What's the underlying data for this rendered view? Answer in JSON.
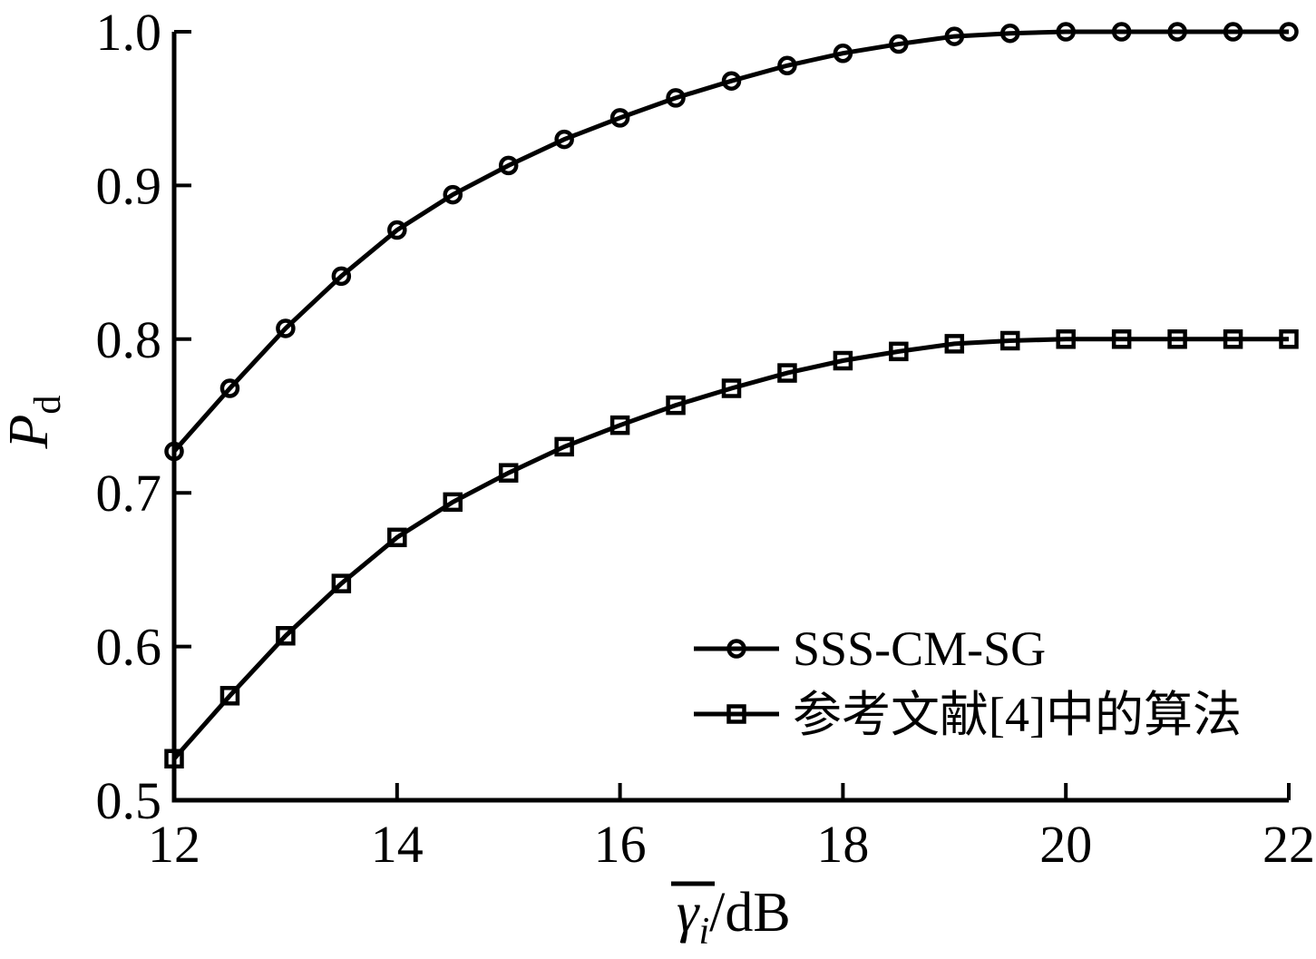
{
  "figure": {
    "background_color": "#ffffff",
    "ink_color": "#000000"
  },
  "chart_data": {
    "type": "line",
    "x": [
      12,
      12.5,
      13,
      13.5,
      14,
      14.5,
      15,
      15.5,
      16,
      16.5,
      17,
      17.5,
      18,
      18.5,
      19,
      19.5,
      20,
      20.5,
      21,
      21.5,
      22
    ],
    "series": [
      {
        "name": "SSS-CM-SG",
        "marker": "circle",
        "values": [
          0.727,
          0.768,
          0.807,
          0.841,
          0.871,
          0.894,
          0.913,
          0.93,
          0.944,
          0.957,
          0.968,
          0.978,
          0.986,
          0.992,
          0.997,
          0.999,
          1.0,
          1.0,
          1.0,
          1.0,
          1.0
        ]
      },
      {
        "name": "参考文献[4]中的算法",
        "marker": "square",
        "values": [
          0.527,
          0.568,
          0.607,
          0.641,
          0.671,
          0.694,
          0.713,
          0.73,
          0.744,
          0.757,
          0.768,
          0.778,
          0.786,
          0.792,
          0.797,
          0.799,
          0.8,
          0.8,
          0.8,
          0.8,
          0.8
        ]
      }
    ],
    "xlabel": {
      "symbol": "γ",
      "overbar": true,
      "subscript": "i",
      "unit": "/dB"
    },
    "ylabel": {
      "symbol": "P",
      "subscript": "d"
    },
    "xlim": [
      12,
      22
    ],
    "ylim": [
      0.5,
      1.0
    ],
    "xticks": {
      "values": [
        12,
        14,
        16,
        18,
        20,
        22
      ],
      "labels": [
        "12",
        "14",
        "16",
        "18",
        "20",
        "22"
      ]
    },
    "yticks": {
      "values": [
        0.5,
        0.6,
        0.7,
        0.8,
        0.9,
        1.0
      ],
      "labels": [
        "0.5",
        "0.6",
        "0.7",
        "0.8",
        "0.9",
        "1.0"
      ]
    },
    "grid": false,
    "legend_position": "lower right",
    "line_color": "#000000",
    "marker_fill": "none"
  }
}
